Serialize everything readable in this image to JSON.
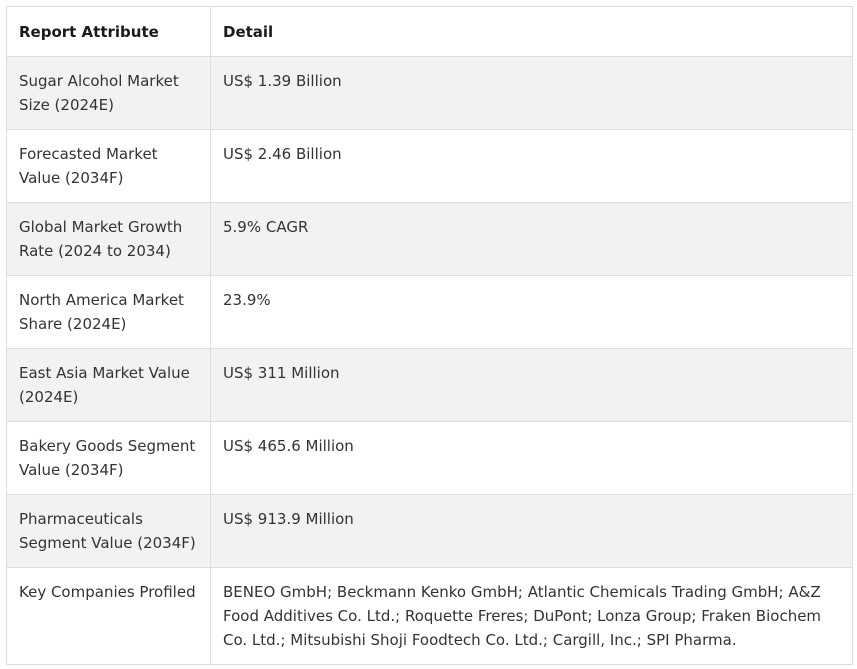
{
  "table": {
    "headers": {
      "attribute": "Report Attribute",
      "detail": "Detail"
    },
    "rows": [
      {
        "attribute": "Sugar Alcohol Market Size (2024E)",
        "detail": "US$ 1.39 Billion"
      },
      {
        "attribute": "Forecasted Market Value (2034F)",
        "detail": "US$ 2.46 Billion"
      },
      {
        "attribute": "Global Market Growth Rate (2024 to 2034)",
        "detail": "5.9% CAGR"
      },
      {
        "attribute": "North America Market Share (2024E)",
        "detail": "23.9%"
      },
      {
        "attribute": "East Asia Market Value (2024E)",
        "detail": "US$ 311 Million"
      },
      {
        "attribute": "Bakery Goods Segment Value (2034F)",
        "detail": "US$ 465.6 Million"
      },
      {
        "attribute": "Pharmaceuticals Segment Value (2034F)",
        "detail": "US$ 913.9 Million"
      },
      {
        "attribute": "Key Companies Profiled",
        "detail": "BENEO GmbH; Beckmann Kenko GmbH; Atlantic Chemicals Trading GmbH; A&Z Food Additives Co. Ltd.; Roquette Freres; DuPont; Lonza Group; Fraken Biochem Co. Ltd.; Mitsubishi Shoji Foodtech Co. Ltd.; Cargill, Inc.; SPI Pharma."
      }
    ]
  }
}
